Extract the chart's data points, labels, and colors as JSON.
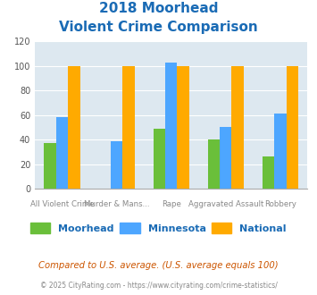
{
  "title_line1": "2018 Moorhead",
  "title_line2": "Violent Crime Comparison",
  "moorhead": [
    37,
    0,
    49,
    40,
    26
  ],
  "minnesota": [
    58,
    39,
    103,
    50,
    61
  ],
  "national": [
    100,
    100,
    100,
    100,
    100
  ],
  "moorhead_color": "#6abf3a",
  "minnesota_color": "#4da6ff",
  "national_color": "#ffaa00",
  "ylim": [
    0,
    120
  ],
  "yticks": [
    0,
    20,
    40,
    60,
    80,
    100,
    120
  ],
  "legend_labels": [
    "Moorhead",
    "Minnesota",
    "National"
  ],
  "top_labels": [
    "",
    "Murder & Mans...",
    "",
    "Aggravated Assault",
    ""
  ],
  "bottom_labels": [
    "All Violent Crime",
    "",
    "Rape",
    "",
    "Robbery"
  ],
  "footnote1": "Compared to U.S. average. (U.S. average equals 100)",
  "footnote2": "© 2025 CityRating.com - https://www.cityrating.com/crime-statistics/",
  "title_color": "#1a6bb5",
  "footnote1_color": "#cc5500",
  "footnote2_color": "#888888",
  "bg_color": "#dde8f0"
}
